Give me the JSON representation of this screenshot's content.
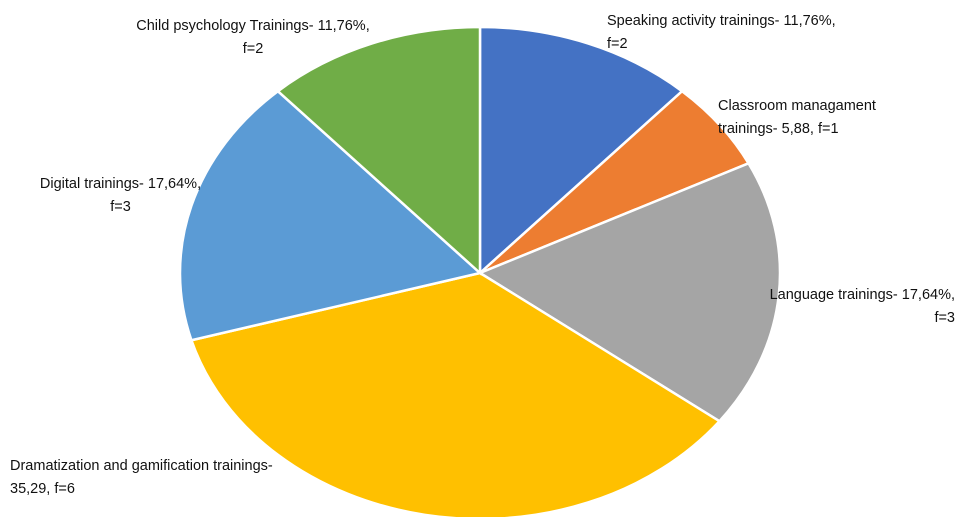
{
  "chart_data": {
    "type": "pie",
    "categories": [
      "Speaking activity trainings-",
      "Classroom managament trainings-",
      "Language trainings-",
      "Dramatization and gamification trainings-",
      "Digital trainings-",
      "Child psychology Trainings-"
    ],
    "values": [
      11.76,
      5.88,
      17.64,
      35.29,
      17.64,
      11.76
    ],
    "value_labels": [
      "11,76%, f=2",
      "5,88, f=1",
      "17,64%, f=3",
      "35,29, f=6",
      "17,64%, f=3",
      "11,76%, f=2"
    ],
    "colors": [
      "#4472c4",
      "#ed7d31",
      "#a5a5a5",
      "#ffc000",
      "#5b9bd5",
      "#70ad47"
    ]
  }
}
